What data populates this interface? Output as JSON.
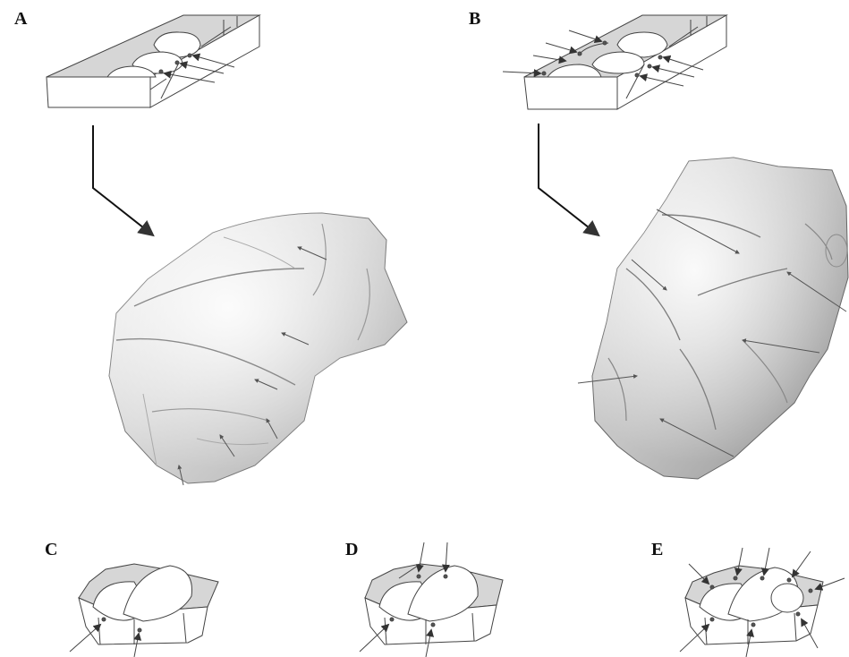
{
  "figure": {
    "panels": [
      {
        "label": "A",
        "content": "block-diagram-with-arrow-to-scanned-core"
      },
      {
        "label": "B",
        "content": "block-diagram-with-arrow-to-scanned-core"
      },
      {
        "label": "C",
        "content": "core-schematic-2-impacts"
      },
      {
        "label": "D",
        "content": "core-schematic-4-impacts"
      },
      {
        "label": "E",
        "content": "core-schematic-8-impacts"
      }
    ]
  }
}
